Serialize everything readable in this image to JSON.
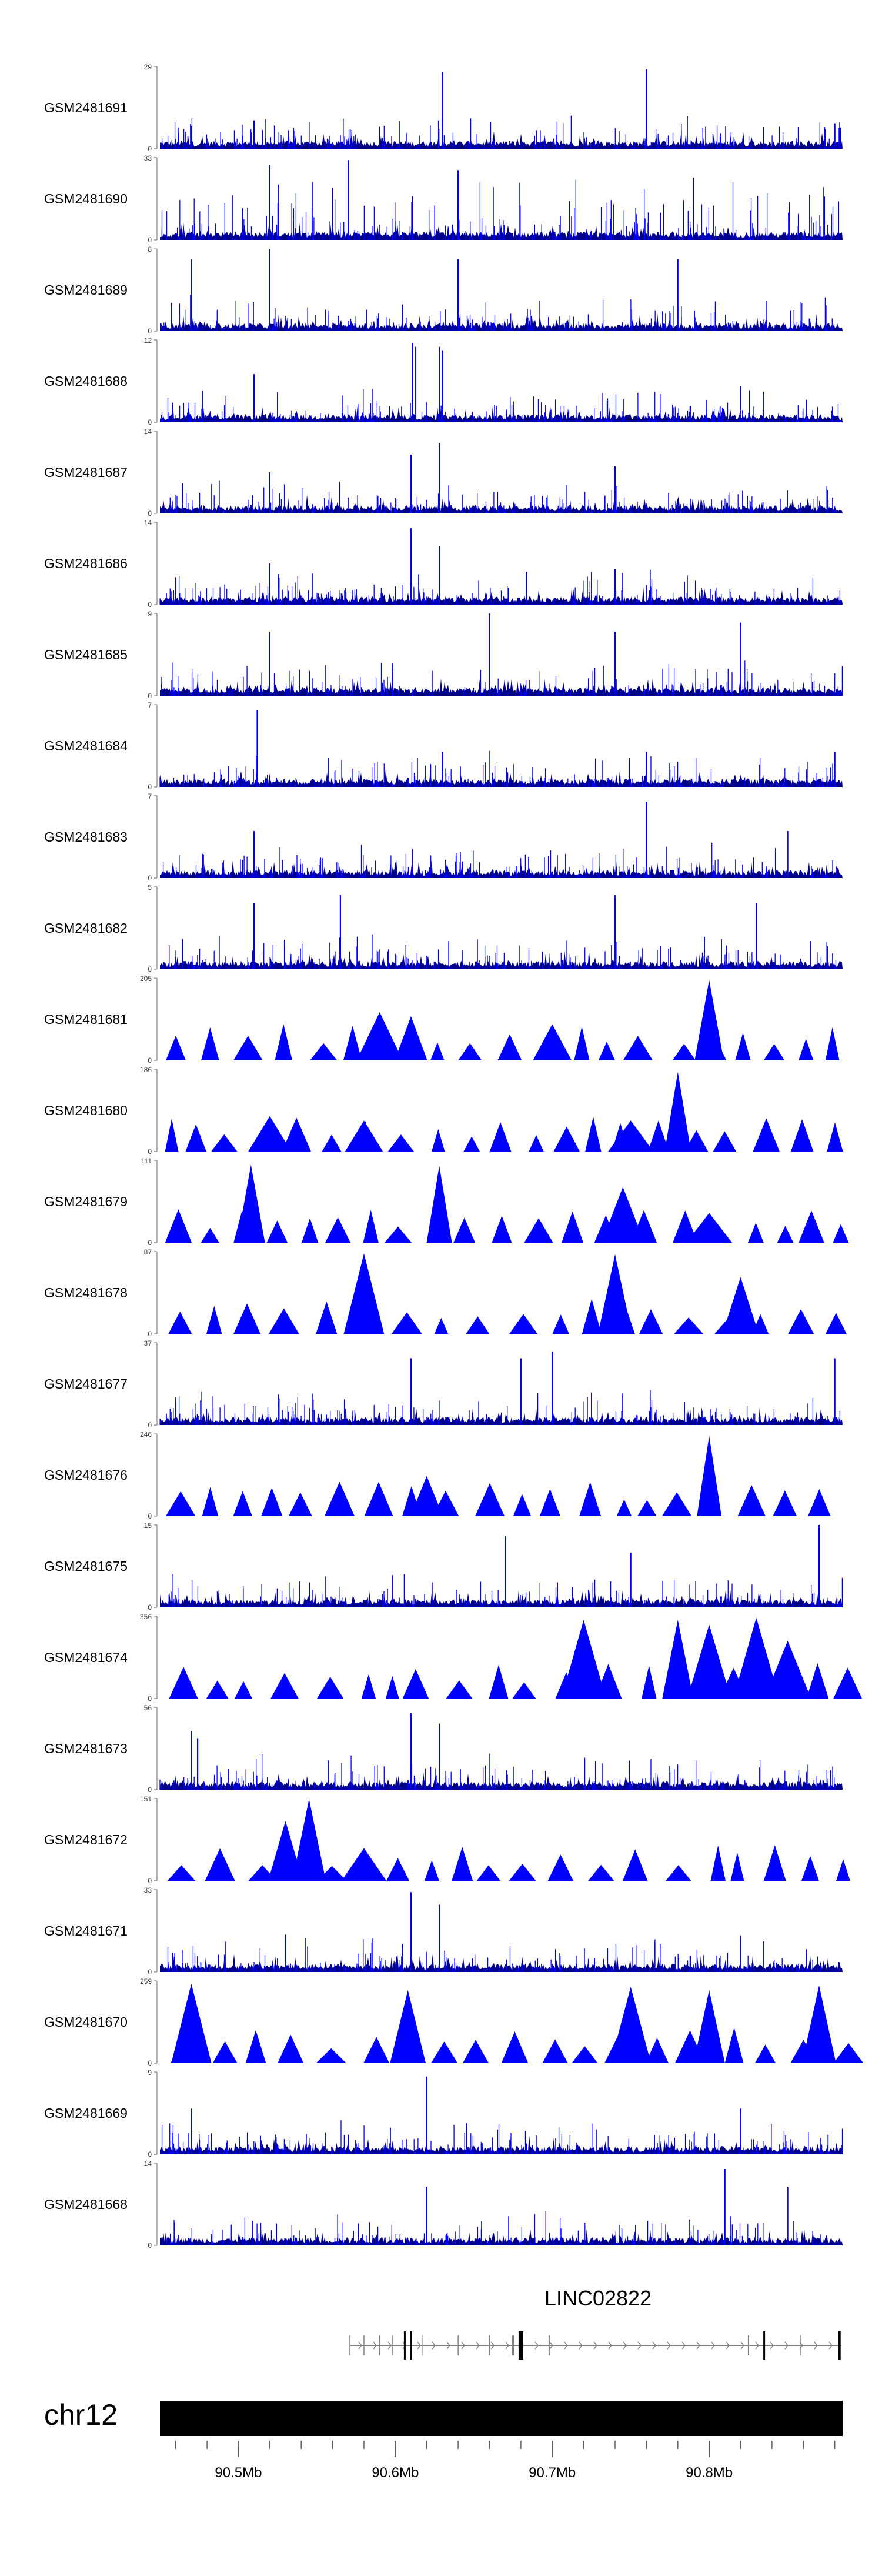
{
  "chart_data": {
    "type": "area",
    "title": "",
    "xlabel": "",
    "ylabel": "",
    "color": "#0000ff",
    "dark_color": "#00008b",
    "xlim": [
      90.45,
      90.885
    ],
    "tracks": [
      {
        "name": "GSM2481691",
        "ymax": "29",
        "ymin": "0",
        "style": "dense",
        "peaks": [
          [
            90.47,
            8
          ],
          [
            90.51,
            10
          ],
          [
            90.63,
            27
          ],
          [
            90.76,
            28
          ],
          [
            90.88,
            9
          ]
        ]
      },
      {
        "name": "GSM2481690",
        "ymax": "33",
        "ymin": "0",
        "style": "spiky",
        "peaks": [
          [
            90.52,
            30
          ],
          [
            90.57,
            32
          ],
          [
            90.64,
            28
          ],
          [
            90.79,
            25
          ]
        ]
      },
      {
        "name": "GSM2481689",
        "ymax": "8",
        "ymin": "0",
        "style": "dense",
        "peaks": [
          [
            90.47,
            7
          ],
          [
            90.52,
            8
          ],
          [
            90.64,
            7
          ],
          [
            90.78,
            7
          ]
        ]
      },
      {
        "name": "GSM2481688",
        "ymax": "12",
        "ymin": "0",
        "style": "dense",
        "peaks": [
          [
            90.51,
            7
          ],
          [
            90.611,
            11.5
          ],
          [
            90.613,
            11
          ],
          [
            90.628,
            11
          ],
          [
            90.63,
            10.5
          ]
        ]
      },
      {
        "name": "GSM2481687",
        "ymax": "14",
        "ymin": "0",
        "style": "dense",
        "peaks": [
          [
            90.52,
            7
          ],
          [
            90.61,
            10
          ],
          [
            90.628,
            12
          ],
          [
            90.74,
            8
          ]
        ]
      },
      {
        "name": "GSM2481686",
        "ymax": "14",
        "ymin": "0",
        "style": "dense",
        "peaks": [
          [
            90.52,
            7
          ],
          [
            90.61,
            13
          ],
          [
            90.628,
            10
          ],
          [
            90.74,
            6
          ]
        ]
      },
      {
        "name": "GSM2481685",
        "ymax": "9",
        "ymin": "0",
        "style": "dense",
        "peaks": [
          [
            90.52,
            7
          ],
          [
            90.66,
            9
          ],
          [
            90.74,
            7
          ],
          [
            90.82,
            8
          ]
        ]
      },
      {
        "name": "GSM2481684",
        "ymax": "7",
        "ymin": "0",
        "style": "dense",
        "peaks": [
          [
            90.512,
            6.5
          ],
          [
            90.63,
            3
          ],
          [
            90.76,
            3
          ],
          [
            90.88,
            3
          ]
        ]
      },
      {
        "name": "GSM2481683",
        "ymax": "7",
        "ymin": "0",
        "style": "dense",
        "peaks": [
          [
            90.51,
            4
          ],
          [
            90.76,
            6.5
          ],
          [
            90.85,
            4
          ]
        ]
      },
      {
        "name": "GSM2481682",
        "ymax": "5",
        "ymin": "0",
        "style": "dense",
        "peaks": [
          [
            90.51,
            4
          ],
          [
            90.565,
            4.5
          ],
          [
            90.74,
            4.5
          ],
          [
            90.83,
            4
          ]
        ]
      },
      {
        "name": "GSM2481681",
        "ymax": "205",
        "ymin": "0",
        "style": "triangles",
        "peaks": [
          [
            90.59,
            120
          ],
          [
            90.61,
            110
          ],
          [
            90.7,
            90
          ],
          [
            90.8,
            200
          ]
        ]
      },
      {
        "name": "GSM2481680",
        "ymax": "186",
        "ymin": "0",
        "style": "triangles",
        "peaks": [
          [
            90.52,
            80
          ],
          [
            90.58,
            70
          ],
          [
            90.75,
            70
          ],
          [
            90.78,
            180
          ]
        ]
      },
      {
        "name": "GSM2481679",
        "ymax": "111",
        "ymin": "0",
        "style": "triangles",
        "peaks": [
          [
            90.508,
            105
          ],
          [
            90.628,
            104
          ],
          [
            90.745,
            75
          ],
          [
            90.8,
            40
          ]
        ]
      },
      {
        "name": "GSM2481678",
        "ymax": "87",
        "ymin": "0",
        "style": "triangles",
        "peaks": [
          [
            90.58,
            85
          ],
          [
            90.74,
            84
          ],
          [
            90.82,
            60
          ]
        ]
      },
      {
        "name": "GSM2481677",
        "ymax": "37",
        "ymin": "0",
        "style": "dense",
        "peaks": [
          [
            90.61,
            30
          ],
          [
            90.68,
            30
          ],
          [
            90.7,
            33
          ],
          [
            90.88,
            30
          ]
        ]
      },
      {
        "name": "GSM2481676",
        "ymax": "246",
        "ymin": "0",
        "style": "triangles",
        "peaks": [
          [
            90.62,
            120
          ],
          [
            90.8,
            240
          ]
        ]
      },
      {
        "name": "GSM2481675",
        "ymax": "15",
        "ymin": "0",
        "style": "dense",
        "peaks": [
          [
            90.67,
            13
          ],
          [
            90.75,
            10
          ],
          [
            90.87,
            15
          ]
        ]
      },
      {
        "name": "GSM2481674",
        "ymax": "356",
        "ymin": "0",
        "style": "triangles",
        "peaks": [
          [
            90.72,
            340
          ],
          [
            90.78,
            340
          ],
          [
            90.8,
            320
          ],
          [
            90.83,
            350
          ],
          [
            90.85,
            250
          ]
        ]
      },
      {
        "name": "GSM2481673",
        "ymax": "56",
        "ymin": "0",
        "style": "dense",
        "peaks": [
          [
            90.47,
            40
          ],
          [
            90.474,
            35
          ],
          [
            90.61,
            52
          ],
          [
            90.628,
            45
          ]
        ]
      },
      {
        "name": "GSM2481672",
        "ymax": "151",
        "ymin": "0",
        "style": "triangles",
        "peaks": [
          [
            90.53,
            110
          ],
          [
            90.545,
            150
          ],
          [
            90.58,
            60
          ]
        ]
      },
      {
        "name": "GSM2481671",
        "ymax": "33",
        "ymin": "0",
        "style": "dense",
        "peaks": [
          [
            90.61,
            32
          ],
          [
            90.628,
            27
          ],
          [
            90.53,
            15
          ]
        ]
      },
      {
        "name": "GSM2481670",
        "ymax": "259",
        "ymin": "0",
        "style": "triangles",
        "peaks": [
          [
            90.47,
            250
          ],
          [
            90.608,
            230
          ],
          [
            90.75,
            240
          ],
          [
            90.8,
            230
          ],
          [
            90.87,
            245
          ]
        ]
      },
      {
        "name": "GSM2481669",
        "ymax": "9",
        "ymin": "0",
        "style": "dense",
        "peaks": [
          [
            90.62,
            8.5
          ],
          [
            90.47,
            5
          ],
          [
            90.82,
            5
          ]
        ]
      },
      {
        "name": "GSM2481668",
        "ymax": "14",
        "ymin": "0",
        "style": "dense",
        "peaks": [
          [
            90.81,
            13
          ],
          [
            90.62,
            10
          ],
          [
            90.85,
            10
          ]
        ]
      }
    ],
    "gene": {
      "label": "LINC02822",
      "start": 90.571,
      "end": 90.884,
      "strand": "+"
    },
    "ideogram": {
      "chromosome": "chr12"
    },
    "axis": {
      "ticks": [
        90.5,
        90.6,
        90.7,
        90.8
      ],
      "tick_labels": [
        "90.5Mb",
        "90.6Mb",
        "90.7Mb",
        "90.8Mb"
      ],
      "minor_step": 0.02
    }
  }
}
